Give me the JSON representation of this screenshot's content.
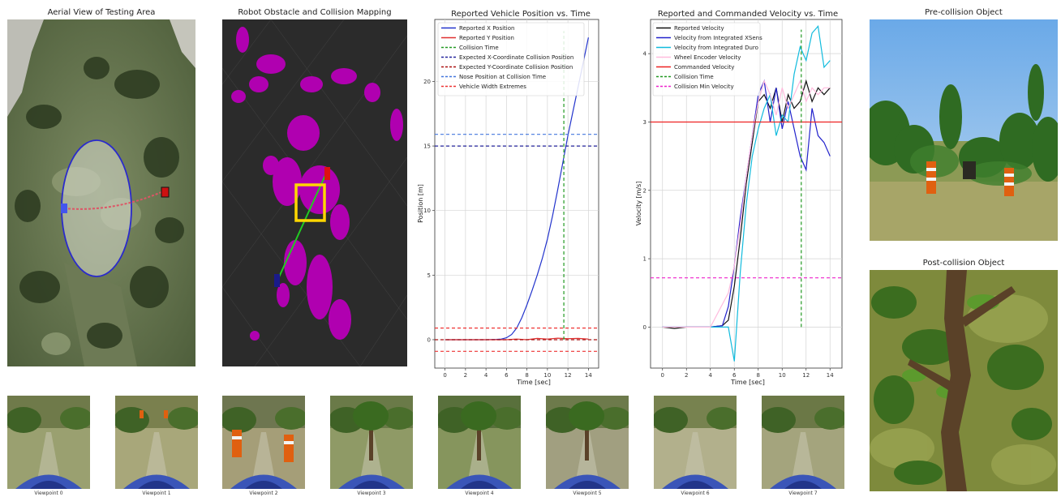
{
  "panels": {
    "aerial_title": "Aerial View of Testing Area",
    "mapping_title": "Robot Obstacle and Collision Mapping",
    "pre_collision_title": "Pre-collision Object",
    "post_collision_title": "Post-collision Object"
  },
  "viewpoints": [
    "Viewpoint 0",
    "Viewpoint 1",
    "Viewpoint 2",
    "Viewpoint 3",
    "Viewpoint 4",
    "Viewpoint 5",
    "Viewpoint 6",
    "Viewpoint 7"
  ],
  "colors": {
    "map_background": "#2b2b2b",
    "obstacle": "#b000b0",
    "map_path": "#22cc22",
    "map_box": "#ffd700",
    "robot_start": "#1a1a8a",
    "robot_end": "#dd1111"
  },
  "chart_data": [
    {
      "type": "line",
      "title": "Reported Vehicle Position vs. Time",
      "xlabel": "Time [sec]",
      "ylabel": "Position [m]",
      "xlim": [
        -1,
        15
      ],
      "ylim": [
        -2.2,
        24.8
      ],
      "xticks": [
        0,
        2,
        4,
        6,
        8,
        10,
        12,
        14
      ],
      "yticks": [
        0,
        5,
        10,
        15,
        20
      ],
      "grid": true,
      "legend_position": "top-left",
      "series": [
        {
          "name": "Reported X Position",
          "color": "#2233cc",
          "style": "solid",
          "x": [
            0,
            1,
            2,
            3,
            4,
            5,
            5.5,
            6,
            6.5,
            7,
            7.5,
            8,
            8.5,
            9,
            9.5,
            10,
            10.5,
            11,
            11.5,
            12,
            12.5,
            13,
            13.5,
            14
          ],
          "y": [
            0,
            0,
            0,
            0,
            0,
            0.02,
            0.05,
            0.15,
            0.4,
            0.9,
            1.7,
            2.7,
            3.8,
            5.0,
            6.3,
            7.8,
            9.6,
            11.6,
            13.7,
            15.8,
            17.7,
            19.6,
            21.5,
            23.4
          ]
        },
        {
          "name": "Reported Y Position",
          "color": "#e03030",
          "style": "solid",
          "x": [
            0,
            2,
            4,
            6,
            7,
            8,
            9,
            10,
            11,
            12,
            13,
            14
          ],
          "y": [
            0,
            0,
            0,
            0,
            0.05,
            0,
            0.1,
            0.05,
            0.12,
            0.08,
            0.1,
            0.05
          ]
        },
        {
          "name": "Collision Time",
          "color": "#229922",
          "style": "dashed",
          "x": [
            11.6,
            11.6
          ],
          "y": [
            0,
            23.9
          ]
        },
        {
          "name": "Expected X-Coordinate Collision Position",
          "color": "#22229a",
          "style": "dashed",
          "x": [
            -1,
            15
          ],
          "y": [
            15,
            15
          ]
        },
        {
          "name": "Expected Y-Coordinate Collision Position",
          "color": "#aa1111",
          "style": "dashed",
          "x": [
            -1,
            15
          ],
          "y": [
            0,
            0
          ]
        },
        {
          "name": "Nose Position at Collision Time",
          "color": "#4477dd",
          "style": "dashed",
          "x": [
            -1,
            15
          ],
          "y": [
            15.9,
            15.9
          ]
        },
        {
          "name": "Vehicle Width Extremes",
          "color": "#ee3333",
          "style": "dashed",
          "x": [
            -1,
            15
          ],
          "y": [
            0.9,
            0.9
          ],
          "x2": [
            -1,
            15
          ],
          "y2": [
            -0.9,
            -0.9
          ]
        }
      ]
    },
    {
      "type": "line",
      "title": "Reported and Commanded Velocity vs. Time",
      "xlabel": "Time [sec]",
      "ylabel": "Velocity [m/s]",
      "xlim": [
        -1,
        15
      ],
      "ylim": [
        -0.6,
        4.5
      ],
      "xticks": [
        0,
        2,
        4,
        6,
        8,
        10,
        12,
        14
      ],
      "yticks": [
        0,
        1,
        2,
        3,
        4
      ],
      "grid": true,
      "legend_position": "top-left",
      "series": [
        {
          "name": "Reported Velocity",
          "color": "#111111",
          "style": "solid",
          "x": [
            0,
            1,
            2,
            3,
            4,
            5,
            5.5,
            6,
            6.5,
            7,
            7.5,
            8,
            8.5,
            9,
            9.5,
            10,
            10.5,
            11,
            11.5,
            12,
            12.5,
            13,
            13.5,
            14
          ],
          "y": [
            0,
            -0.02,
            0,
            0,
            0,
            0.02,
            0.1,
            0.6,
            1.3,
            2.1,
            2.7,
            3.3,
            3.4,
            3.2,
            3.5,
            3.0,
            3.4,
            3.2,
            3.3,
            3.6,
            3.3,
            3.5,
            3.4,
            3.5
          ]
        },
        {
          "name": "Velocity from Integrated XSens",
          "color": "#2222cc",
          "style": "solid",
          "x": [
            0,
            2,
            4,
            5,
            5.5,
            6,
            6.5,
            7,
            7.5,
            8,
            8.5,
            9,
            9.5,
            10,
            10.5,
            11,
            11.5,
            12,
            12.5,
            13,
            13.5,
            14
          ],
          "y": [
            0,
            0,
            0,
            0.02,
            0.3,
            0.9,
            1.6,
            2.2,
            2.8,
            3.4,
            3.6,
            3.0,
            3.5,
            2.9,
            3.3,
            2.9,
            2.5,
            2.3,
            3.2,
            2.8,
            2.7,
            2.5
          ]
        },
        {
          "name": "Velocity from Integrated Duro",
          "color": "#11bbdd",
          "style": "solid",
          "x": [
            0,
            2,
            4,
            5,
            5.5,
            6,
            6.5,
            7,
            7.5,
            8,
            8.5,
            9,
            9.5,
            10,
            10.5,
            11,
            11.5,
            12,
            12.5,
            13,
            13.5,
            14
          ],
          "y": [
            0,
            0,
            0,
            0,
            0,
            -0.5,
            0.8,
            1.8,
            2.5,
            2.9,
            3.2,
            3.4,
            2.8,
            3.1,
            3.0,
            3.7,
            4.1,
            3.9,
            4.3,
            4.4,
            3.8,
            3.9
          ]
        },
        {
          "name": "Wheel Encoder Velocity",
          "color": "#ffbbdd",
          "style": "solid",
          "x": [
            0,
            2,
            4,
            5.5,
            6,
            6.5,
            7,
            7.5,
            8,
            8.5,
            9,
            9.5,
            10,
            10.5,
            11,
            11.5,
            12,
            12.5,
            13,
            13.5,
            14
          ],
          "y": [
            0,
            0,
            0,
            0.5,
            0.9,
            1.5,
            2.2,
            2.8,
            3.3,
            3.6,
            3.4,
            3.1,
            3.5,
            3.2,
            3.4,
            3.6,
            3.3,
            3.5,
            3.4,
            3.5,
            3.5
          ]
        },
        {
          "name": "Commanded Velocity",
          "color": "#ee2222",
          "style": "solid",
          "x": [
            -1,
            15
          ],
          "y": [
            3,
            3
          ]
        },
        {
          "name": "Collision Time",
          "color": "#229922",
          "style": "dashed",
          "x": [
            11.6,
            11.6
          ],
          "y": [
            0,
            4.35
          ]
        },
        {
          "name": "Collision Min Velocity",
          "color": "#ee22cc",
          "style": "dashed",
          "x": [
            -1,
            15
          ],
          "y": [
            0.72,
            0.72
          ]
        }
      ]
    }
  ]
}
